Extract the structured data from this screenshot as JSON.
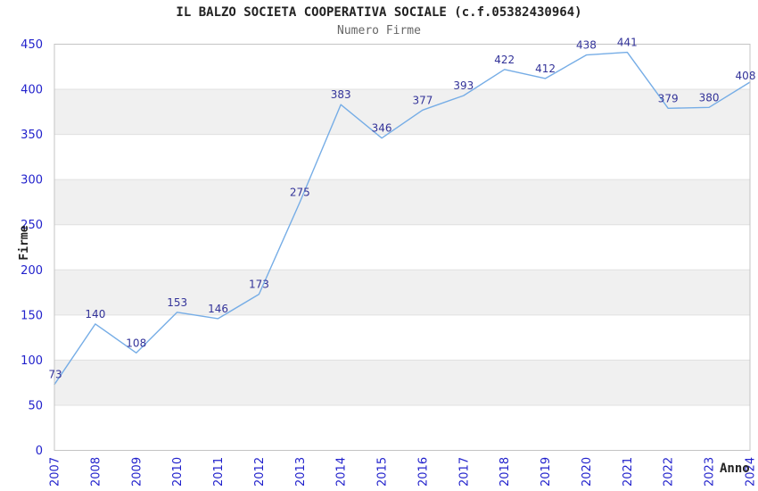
{
  "header": {
    "title": "IL BALZO SOCIETA COOPERATIVA SOCIALE (c.f.05382430964)",
    "subtitle": "Numero Firme"
  },
  "chart_data": {
    "type": "line",
    "title": "IL BALZO SOCIETA COOPERATIVA SOCIALE (c.f.05382430964)",
    "subtitle": "Numero Firme",
    "xlabel": "Anno",
    "ylabel": "Firme",
    "categories": [
      "2007",
      "2008",
      "2009",
      "2010",
      "2011",
      "2012",
      "2013",
      "2014",
      "2015",
      "2016",
      "2017",
      "2018",
      "2019",
      "2020",
      "2021",
      "2022",
      "2023",
      "2024"
    ],
    "series": [
      {
        "name": "Numero Firme",
        "values": [
          73,
          140,
          108,
          153,
          146,
          173,
          275,
          383,
          346,
          377,
          393,
          422,
          412,
          438,
          441,
          379,
          380,
          408
        ]
      }
    ],
    "point_labels_visible": true,
    "ylim": [
      0,
      450
    ],
    "ytick_step": 50,
    "yticks": [
      0,
      50,
      100,
      150,
      200,
      250,
      300,
      350,
      400,
      450
    ],
    "grid": true,
    "alternating_bands": true,
    "legend_position": "none",
    "colors": {
      "line": "#76ade6",
      "point_label": "#333399",
      "tick_label": "#2222cc",
      "band_fill": "#f0f0f0",
      "gridline": "#e0e0e0",
      "plot_border": "#c4c4c4",
      "title": "#222222",
      "subtitle": "#666666",
      "axis_title": "#222222",
      "background": "#ffffff"
    }
  }
}
